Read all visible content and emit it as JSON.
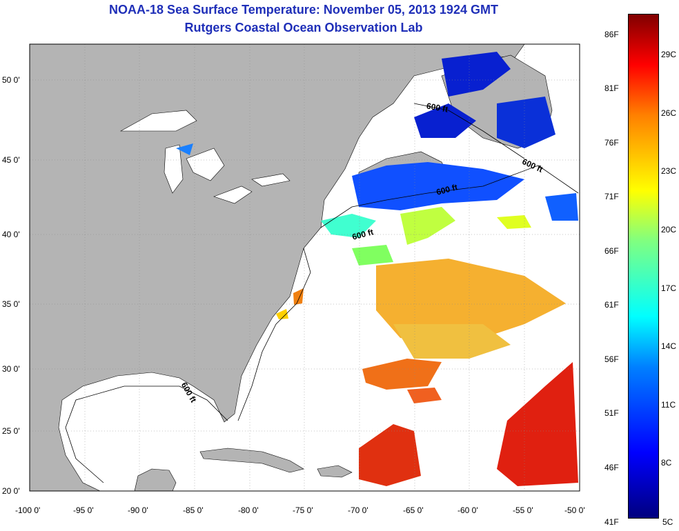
{
  "title": {
    "line1": "NOAA-18 Sea Surface Temperature:  November 05, 2013 1924 GMT",
    "line2": "Rutgers Coastal Ocean Observation Lab"
  },
  "map": {
    "lon_ticks": [
      "-100 0'",
      "-95 0'",
      "-90 0'",
      "-85 0'",
      "-80 0'",
      "-75 0'",
      "-70 0'",
      "-65 0'",
      "-60 0'",
      "-55 0'",
      "-50 0'"
    ],
    "lat_ticks": [
      "50 0'",
      "45 0'",
      "40 0'",
      "35 0'",
      "30 0'",
      "25 0'",
      "20 0'"
    ],
    "contour_labels": [
      "600 ft",
      "600 ft",
      "600 ft",
      "600 ft",
      "600 ft"
    ]
  },
  "colorbar": {
    "fahrenheit": [
      "86F",
      "81F",
      "76F",
      "71F",
      "66F",
      "61F",
      "56F",
      "51F",
      "46F",
      "41F"
    ],
    "celsius": [
      "29C",
      "26C",
      "23C",
      "20C",
      "17C",
      "14C",
      "11C",
      "8C",
      "5C"
    ]
  },
  "colors": {
    "title": "#1f2fb8",
    "land": "#b4b4b4",
    "ocean": "#ffffff"
  }
}
